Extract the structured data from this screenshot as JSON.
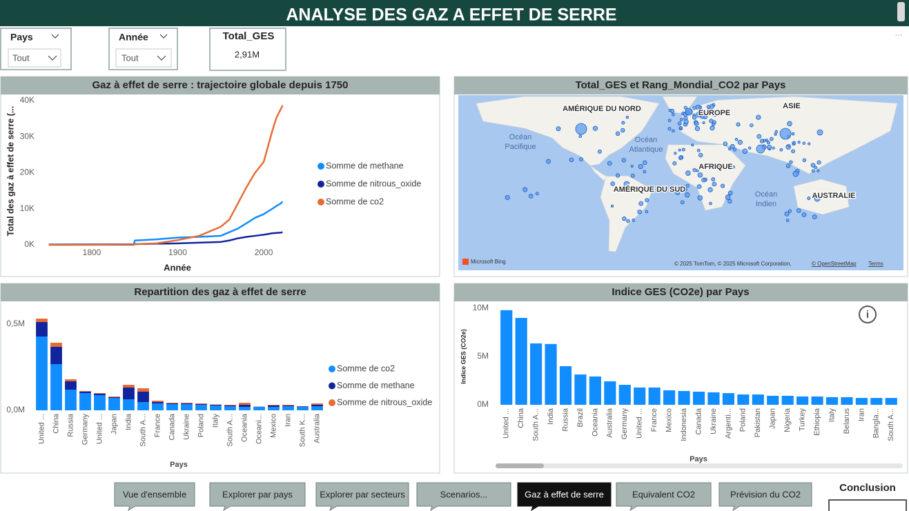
{
  "header": {
    "title": "ANALYSE DES GAZ A EFFET DE SERRE"
  },
  "filters": [
    {
      "label": "Pays",
      "value": "Tout"
    },
    {
      "label": "Année",
      "value": "Tout"
    }
  ],
  "card": {
    "label": "Total_GES",
    "value": "2,91M"
  },
  "map": {
    "title": "Total_GES et Rang_Mondial_CO2 par Pays",
    "labels": [
      "AMÉRIQUE DU NORD",
      "EUROPE",
      "ASIE",
      "AFRIQUE",
      "AMÉRIQUE DU SUD",
      "AUSTRALIE"
    ],
    "oceans": [
      [
        "Océan",
        "Pacifique"
      ],
      [
        "Océan",
        "Atlantique"
      ],
      [
        "Océan",
        "Indien"
      ]
    ],
    "logo": "Microsoft Bing",
    "attribution": "© 2025 TomTom, © 2025 Microsoft Corporation,",
    "osm": "© OpenStreetMap",
    "terms": "Terms"
  },
  "nav": {
    "buttons": [
      "Vue d'ensemble",
      "Explorer par pays",
      "Explorer par secteurs",
      "Scenarios...",
      "Gaz à effet de serre",
      "Equivalent CO2",
      "Prévision du CO2"
    ],
    "active_index": 4
  },
  "conclusion": "Conclusion",
  "chart_data": [
    {
      "type": "line",
      "title": "Gaz à effet de serre : trajectoire globale depuis 1750",
      "x": [
        1750,
        1800,
        1849,
        1850,
        1875,
        1900,
        1925,
        1950,
        1960,
        1970,
        1980,
        1990,
        2000,
        2010,
        2015,
        2020,
        2022
      ],
      "series": [
        {
          "name": "Somme de methane",
          "color": "#118DFF",
          "values": [
            100,
            150,
            200,
            1200,
            1500,
            2000,
            2200,
            2500,
            3500,
            4500,
            6000,
            7500,
            8500,
            10000,
            10800,
            11500,
            12000
          ]
        },
        {
          "name": "Somme de nitrous_oxide",
          "color": "#12239E",
          "values": [
            20,
            30,
            50,
            200,
            300,
            400,
            600,
            800,
            1200,
            1800,
            2200,
            2500,
            2800,
            3200,
            3300,
            3400,
            3500
          ]
        },
        {
          "name": "Somme de co2",
          "color": "#E66C37",
          "values": [
            10,
            30,
            150,
            200,
            400,
            1300,
            2500,
            5000,
            7000,
            11500,
            16000,
            20000,
            23000,
            31600,
            35400,
            37700,
            38700
          ]
        }
      ],
      "xlim": [
        1740,
        2030
      ],
      "xticks": [
        1800,
        1900,
        2000
      ],
      "ylim": [
        0,
        40000
      ],
      "yticks": [
        {
          "value": 0,
          "label": "0K"
        },
        {
          "value": 10000,
          "label": "10K"
        },
        {
          "value": 20000,
          "label": "20K"
        },
        {
          "value": 30000,
          "label": "30K"
        },
        {
          "value": 40000,
          "label": "40K"
        }
      ],
      "x_label": "Année",
      "y_label": "Total des gaz à effet de serre (...",
      "grid": false,
      "legend": "right"
    },
    {
      "type": "bar",
      "stacked": true,
      "title": "Repartition des gaz à effet de serre",
      "categories": [
        "United ...",
        "China",
        "Russia",
        "Germany",
        "United ...",
        "Japan",
        "India",
        "South A...",
        "France",
        "Canada",
        "Ukraine",
        "Poland",
        "Italy",
        "South A...",
        "Oceania",
        "Oceani...",
        "Mexico",
        "Iran",
        "South K...",
        "Australia"
      ],
      "series": [
        {
          "name": "Somme de co2",
          "color": "#118DFF",
          "values": [
            428000,
            268000,
            120000,
            100000,
            88000,
            72000,
            64000,
            48000,
            40000,
            36000,
            36000,
            32000,
            28000,
            24000,
            20000,
            20000,
            20000,
            24000,
            20000,
            24000
          ]
        },
        {
          "name": "Somme de methane",
          "color": "#12239E",
          "values": [
            84000,
            100000,
            48000,
            8000,
            8000,
            4000,
            68000,
            60000,
            8000,
            4000,
            4000,
            4000,
            4000,
            4000,
            12000,
            1000,
            8000,
            4000,
            2000,
            8000
          ]
        },
        {
          "name": "Somme de nitrous_oxide",
          "color": "#E66C37",
          "values": [
            20000,
            24000,
            12000,
            4000,
            4000,
            4000,
            16000,
            20000,
            8000,
            4000,
            4000,
            4000,
            2000,
            4000,
            12000,
            1000,
            4000,
            4000,
            2000,
            8000
          ]
        }
      ],
      "ylim": [
        0,
        560000
      ],
      "yticks": [
        {
          "value": 0,
          "label": "0,0M"
        },
        {
          "value": 500000,
          "label": "0,5M"
        }
      ],
      "x_label": "Pays",
      "grid": false,
      "legend": "right"
    },
    {
      "type": "bar",
      "title": "Indice GES (CO2e) par Pays",
      "categories": [
        "United ...",
        "China",
        "South A...",
        "India",
        "Russia",
        "Brazil",
        "Oceania",
        "Australia",
        "Germany",
        "United ...",
        "France",
        "Mexico",
        "Indonesia",
        "Canada",
        "Ukraine",
        "Argenti...",
        "Poland",
        "Pakistan",
        "Japan",
        "Nigeria",
        "Turkey",
        "Ethiopia",
        "Italy",
        "Belarus",
        "Iran",
        "Bangla...",
        "South A..."
      ],
      "values": [
        9800000,
        9000000,
        6360000,
        6300000,
        4000000,
        3140000,
        2930000,
        2430000,
        2070000,
        1790000,
        1790000,
        1500000,
        1430000,
        1360000,
        1290000,
        1210000,
        1070000,
        1070000,
        930000,
        930000,
        860000,
        860000,
        790000,
        790000,
        710000,
        710000,
        710000
      ],
      "color": "#118DFF",
      "ylim": [
        0,
        10500000
      ],
      "yticks": [
        {
          "value": 0,
          "label": "0M"
        },
        {
          "value": 5000000,
          "label": "5M"
        },
        {
          "value": 10000000,
          "label": "10M"
        }
      ],
      "x_label": "Pays",
      "y_label": "Indice GES (CO2e)",
      "grid": false
    }
  ]
}
